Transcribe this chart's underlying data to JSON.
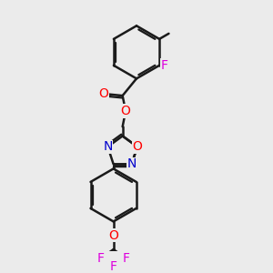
{
  "background_color": "#ebebeb",
  "bond_color": "#1a1a1a",
  "bond_width": 1.8,
  "atom_colors": {
    "O": "#ff0000",
    "N": "#0000cc",
    "F": "#dd00dd",
    "C": "#1a1a1a"
  },
  "font_size": 10
}
